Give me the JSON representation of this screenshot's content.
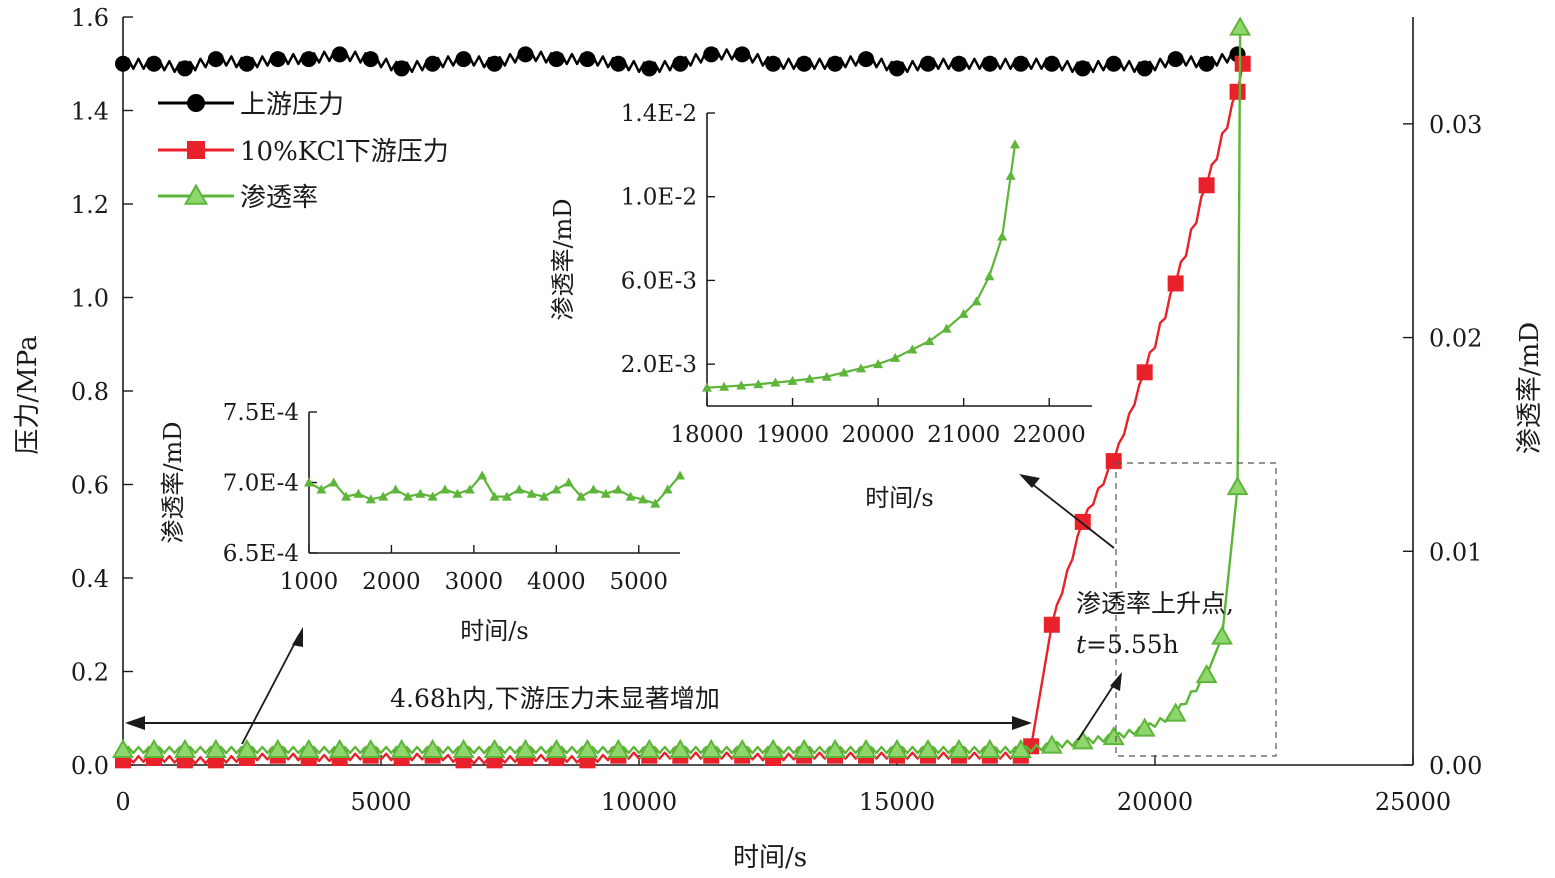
{
  "chart_data": {
    "type": "line",
    "title": "",
    "xlabel": "时间/s",
    "ylabel_left": "压力/MPa",
    "ylabel_right": "渗透率/mD",
    "xlim": [
      0,
      25000
    ],
    "ylim_left": [
      0,
      1.6
    ],
    "ylim_right": [
      0,
      0.035
    ],
    "x_ticks": [
      "0",
      "5000",
      "10000",
      "15000",
      "20000",
      "25000"
    ],
    "y_left_ticks": [
      "0.0",
      "0.2",
      "0.4",
      "0.6",
      "0.8",
      "1.0",
      "1.2",
      "1.4",
      "1.6"
    ],
    "y_right_ticks": [
      "0.00",
      "0.01",
      "0.02",
      "0.03"
    ],
    "grid": false,
    "legend_position": "top-left",
    "series": [
      {
        "name": "上游压力",
        "axis": "left",
        "color": "#000000",
        "marker": "circle",
        "x": [
          0,
          600,
          1200,
          1800,
          2400,
          3000,
          3600,
          4200,
          4800,
          5400,
          6000,
          6600,
          7200,
          7800,
          8400,
          9000,
          9600,
          10200,
          10800,
          11400,
          12000,
          12600,
          13200,
          13800,
          14400,
          15000,
          15600,
          16200,
          16800,
          17400,
          18000,
          18600,
          19200,
          19800,
          20400,
          21000,
          21600
        ],
        "values": [
          1.5,
          1.5,
          1.49,
          1.51,
          1.5,
          1.51,
          1.51,
          1.52,
          1.51,
          1.49,
          1.5,
          1.51,
          1.5,
          1.52,
          1.51,
          1.51,
          1.5,
          1.49,
          1.5,
          1.52,
          1.52,
          1.5,
          1.5,
          1.5,
          1.51,
          1.49,
          1.5,
          1.5,
          1.5,
          1.5,
          1.5,
          1.49,
          1.5,
          1.49,
          1.51,
          1.5,
          1.52
        ]
      },
      {
        "name": "10%KCl下游压力",
        "axis": "left",
        "color": "#e8212b",
        "marker": "square",
        "x": [
          0,
          600,
          1200,
          1800,
          2400,
          3000,
          3600,
          4200,
          4800,
          5400,
          6000,
          6600,
          7200,
          7800,
          8400,
          9000,
          9600,
          10200,
          10800,
          11400,
          12000,
          12600,
          13200,
          13800,
          14400,
          15000,
          15600,
          16200,
          16800,
          17400,
          17600,
          18000,
          18600,
          19200,
          19800,
          20400,
          21000,
          21600,
          21700
        ],
        "values": [
          0.01,
          0.015,
          0.01,
          0.01,
          0.015,
          0.02,
          0.015,
          0.015,
          0.02,
          0.015,
          0.02,
          0.01,
          0.01,
          0.015,
          0.015,
          0.01,
          0.02,
          0.02,
          0.02,
          0.02,
          0.02,
          0.015,
          0.02,
          0.02,
          0.02,
          0.02,
          0.02,
          0.02,
          0.02,
          0.02,
          0.04,
          0.3,
          0.52,
          0.65,
          0.84,
          1.03,
          1.24,
          1.44,
          1.5
        ]
      },
      {
        "name": "渗透率",
        "axis": "right",
        "color": "#5db539",
        "marker": "triangle",
        "x": [
          0,
          600,
          1200,
          1800,
          2400,
          3000,
          3600,
          4200,
          4800,
          5400,
          6000,
          6600,
          7200,
          7800,
          8400,
          9000,
          9600,
          10200,
          10800,
          11400,
          12000,
          12600,
          13200,
          13800,
          14400,
          15000,
          15600,
          16200,
          16800,
          17400,
          18000,
          18600,
          19200,
          19800,
          20400,
          21000,
          21300,
          21600,
          21650
        ],
        "values": [
          0.0007,
          0.0007,
          0.0007,
          0.0007,
          0.0007,
          0.0007,
          0.0007,
          0.0007,
          0.0007,
          0.0007,
          0.0007,
          0.0007,
          0.0007,
          0.0007,
          0.0007,
          0.0007,
          0.0007,
          0.0007,
          0.0007,
          0.0007,
          0.0007,
          0.0007,
          0.0007,
          0.0007,
          0.0007,
          0.0007,
          0.0007,
          0.0007,
          0.0007,
          0.0007,
          0.0009,
          0.0011,
          0.0013,
          0.0017,
          0.0024,
          0.0042,
          0.006,
          0.013,
          0.0345
        ]
      }
    ],
    "insets": [
      {
        "type": "line",
        "xlabel": "时间/s",
        "ylabel": "渗透率/mD",
        "xlim": [
          1000,
          5500
        ],
        "ylim": [
          0.00065,
          0.00075
        ],
        "x_ticks": [
          "1000",
          "2000",
          "3000",
          "4000",
          "5000"
        ],
        "y_ticks": [
          "6.5E-4",
          "7.0E-4",
          "7.5E-4"
        ],
        "series": [
          {
            "color": "#5db539",
            "x": [
              1000,
              1150,
              1300,
              1450,
              1600,
              1750,
              1900,
              2050,
              2200,
              2350,
              2500,
              2650,
              2800,
              2950,
              3100,
              3250,
              3400,
              3550,
              3700,
              3850,
              4000,
              4150,
              4300,
              4450,
              4600,
              4750,
              4900,
              5050,
              5200,
              5350,
              5500
            ],
            "values": [
              0.0007,
              0.000695,
              0.0007,
              0.00069,
              0.000692,
              0.000688,
              0.00069,
              0.000695,
              0.00069,
              0.000692,
              0.00069,
              0.000695,
              0.000692,
              0.000695,
              0.000705,
              0.00069,
              0.00069,
              0.000695,
              0.000692,
              0.00069,
              0.000695,
              0.0007,
              0.00069,
              0.000695,
              0.000692,
              0.000695,
              0.00069,
              0.000688,
              0.000685,
              0.000695,
              0.000705
            ]
          }
        ]
      },
      {
        "type": "line",
        "xlabel": "时间/s",
        "ylabel": "渗透率/mD",
        "xlim": [
          18000,
          22500
        ],
        "ylim": [
          0.0,
          0.014
        ],
        "x_ticks": [
          "18000",
          "19000",
          "20000",
          "21000",
          "22000"
        ],
        "y_ticks": [
          "2.0E-3",
          "6.0E-3",
          "1.0E-2",
          "1.4E-2"
        ],
        "series": [
          {
            "color": "#5db539",
            "x": [
              18000,
              18200,
              18400,
              18600,
              18800,
              19000,
              19200,
              19400,
              19600,
              19800,
              20000,
              20200,
              20400,
              20600,
              20800,
              21000,
              21150,
              21300,
              21450,
              21550,
              21600
            ],
            "values": [
              0.00088,
              0.00092,
              0.00098,
              0.00104,
              0.00112,
              0.0012,
              0.0013,
              0.0014,
              0.0016,
              0.0018,
              0.002,
              0.0023,
              0.0027,
              0.0031,
              0.0037,
              0.0044,
              0.005,
              0.0062,
              0.0081,
              0.011,
              0.0125
            ]
          }
        ]
      }
    ],
    "annotations": {
      "below_span": "4.68h内,下游压力未显著增加",
      "rise_point_line1": "渗透率上升点,",
      "rise_point_t": "t",
      "rise_point_eq": "=5.55h"
    }
  }
}
